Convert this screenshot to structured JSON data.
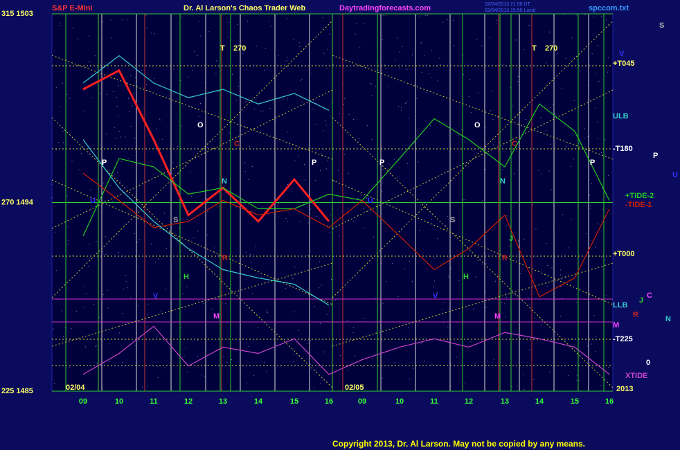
{
  "chart_data": {
    "type": "line",
    "title": "Dr. Al Larson's Chaos Trader Web",
    "subtitle": "Daytradingforecasts.com",
    "file_label": "spccom.txt",
    "timestamp": [
      "02/04/2013 21:50 UT",
      "02/04/2013 15:50 Local"
    ],
    "copyright": "Copyright 2013, Dr. Al Larson. May not be copied by any means.",
    "date_labels": [
      "02/04",
      "02/05",
      "2013"
    ],
    "categories": [
      "09",
      "10",
      "11",
      "12",
      "13",
      "14",
      "15",
      "16",
      "09",
      "10",
      "11",
      "12",
      "13",
      "14",
      "15",
      "16"
    ],
    "ylim": [
      1485,
      1503
    ],
    "yticks": [
      {
        "value": 1503,
        "label": "315 1503"
      },
      {
        "value": 1494,
        "label": "270 1494"
      },
      {
        "value": 1485,
        "label": "225 1485"
      }
    ],
    "grid": true,
    "series": [
      {
        "name": "S&P E-Mini",
        "color": "#ff2020",
        "values": [
          1499.4,
          1500.3,
          1497.0,
          1493.4,
          1494.7,
          1493.1,
          1495.1,
          1493.1,
          null,
          null,
          null,
          null,
          null,
          null,
          null,
          null
        ]
      },
      {
        "name": "+TIDE-2",
        "color": "#22cc22",
        "values": [
          1492.4,
          1496.1,
          1495.7,
          1494.4,
          1494.7,
          1493.7,
          1493.7,
          1494.4,
          1494.1,
          1496.1,
          1498.0,
          1497.0,
          1495.7,
          1498.7,
          1497.4,
          1494.1
        ]
      },
      {
        "name": "-TIDE-1",
        "color": "#cc2200",
        "values": [
          1495.4,
          1494.1,
          1492.8,
          1493.1,
          1494.1,
          1493.4,
          1493.7,
          1492.8,
          1494.1,
          1492.4,
          1490.8,
          1491.8,
          1493.4,
          1489.5,
          1490.4,
          1493.7
        ]
      },
      {
        "name": "ULB",
        "color": "#33cccc",
        "values": [
          1499.7,
          1501.0,
          1499.7,
          1499.0,
          1499.4,
          1498.7,
          1499.2,
          1498.4,
          null,
          null,
          null,
          null,
          null,
          null,
          null,
          null
        ]
      },
      {
        "name": "LLB",
        "color": "#33cccc",
        "values": [
          1497.0,
          1494.7,
          1493.1,
          1491.8,
          1490.8,
          1490.4,
          1490.1,
          1489.1,
          null,
          null,
          null,
          null,
          null,
          null,
          null,
          null
        ]
      },
      {
        "name": "XTIDE",
        "color": "#cc44cc",
        "values": [
          1485.8,
          1486.8,
          1488.1,
          1486.2,
          1487.1,
          1486.8,
          1487.5,
          1485.8,
          1486.5,
          1487.1,
          1487.5,
          1487.1,
          1487.8,
          1487.5,
          1487.1,
          1485.8
        ]
      }
    ],
    "annotations": [
      "+T045",
      "-T180",
      "+T000",
      "M",
      "-T225",
      "T",
      "270",
      "T",
      "270",
      "O",
      "O",
      "P",
      "P",
      "P",
      "P",
      "P",
      "C",
      "C",
      "C",
      "S",
      "S",
      "S",
      "R",
      "R",
      "R",
      "H",
      "H",
      "V",
      "V",
      "V",
      "M",
      "M",
      "N",
      "N",
      "N",
      "U",
      "U",
      "U",
      "J",
      "J",
      "0"
    ]
  }
}
